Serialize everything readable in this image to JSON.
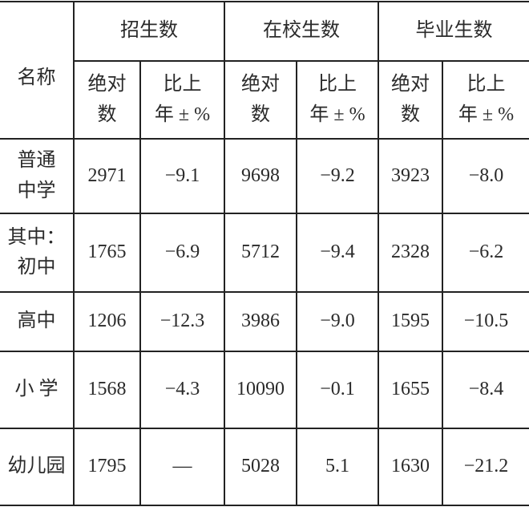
{
  "header": {
    "name": "名称",
    "groups": [
      "招生数",
      "在校生数",
      "毕业生数"
    ],
    "sub": [
      {
        "abs_line1": "绝对",
        "abs_line2": "数",
        "pct_line1": "比上",
        "pct_line2": "年 ± %"
      },
      {
        "abs_line1": "绝对",
        "abs_line2": "数",
        "pct_line1": "比上",
        "pct_line2": "年 ± %"
      },
      {
        "abs_line1": "绝对",
        "abs_line2": "数",
        "pct_line1": "比上",
        "pct_line2": "年 ± %"
      }
    ]
  },
  "rows": [
    {
      "name1": "普通",
      "name2": "中学",
      "cells": [
        "2971",
        "−9.1",
        "9698",
        "−9.2",
        "3923",
        "−8.0"
      ]
    },
    {
      "name1": "其中：",
      "name2": "初中",
      "cells": [
        "1765",
        "−6.9",
        "5712",
        "−9.4",
        "2328",
        "−6.2"
      ]
    },
    {
      "name1": "高中",
      "name2": "",
      "cells": [
        "1206",
        "−12.3",
        "3986",
        "−9.0",
        "1595",
        "−10.5"
      ]
    },
    {
      "name1": "小 学",
      "name2": "",
      "cells": [
        "1568",
        "−4.3",
        "10090",
        "−0.1",
        "1655",
        "−8.4"
      ]
    },
    {
      "name1": "幼儿园",
      "name2": "",
      "cells": [
        "1795",
        "—",
        "5028",
        "5.1",
        "1630",
        "−21.2"
      ]
    }
  ]
}
